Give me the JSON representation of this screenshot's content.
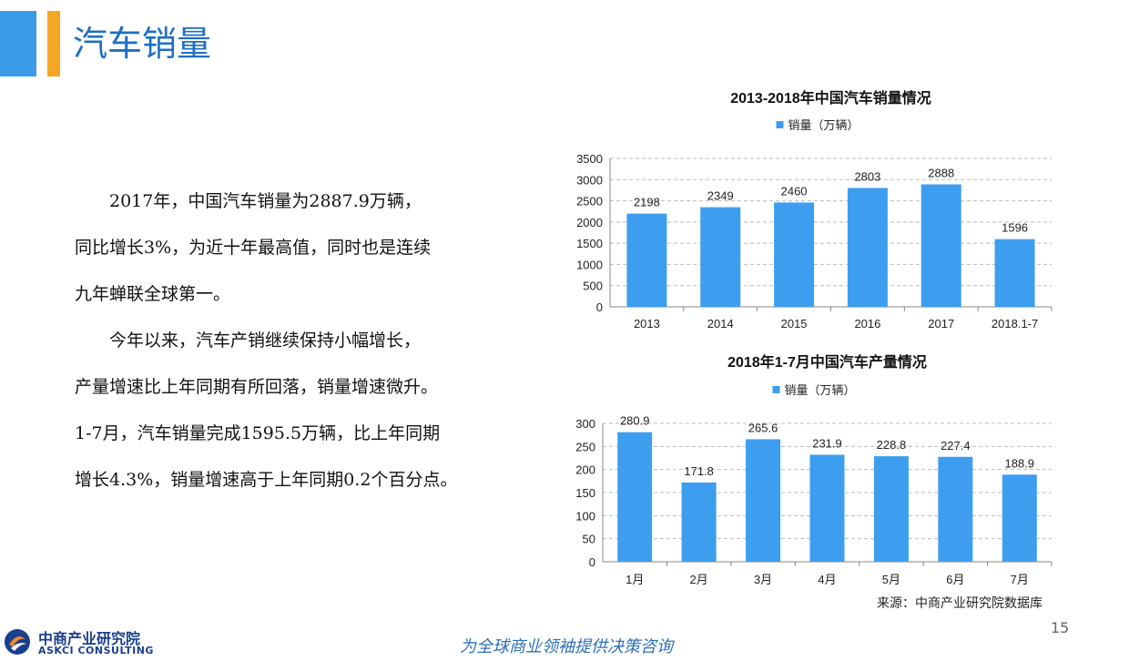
{
  "header": {
    "title": "汽车销量"
  },
  "colors": {
    "accent_blue": "#3a9be8",
    "accent_orange": "#f5a623",
    "bar": "#3d9ef0",
    "title_blue": "#1e6fc4",
    "slogan": "#2c6fb7"
  },
  "body": {
    "paragraphs": [
      "2017年，中国汽车销量为2887.9万辆，",
      "同比增长3%，为近十年最高值，同时也是连续",
      "九年蝉联全球第一。",
      "今年以来，汽车产销继续保持小幅增长，",
      "产量增速比上年同期有所回落，销量增速微升。",
      "1-7月，汽车销量完成1595.5万辆，比上年同期",
      "增长4.3%，销量增速高于上年同期0.2个百分点。"
    ]
  },
  "chart_data": [
    {
      "type": "bar",
      "title": "2013-2018年中国汽车销量情况",
      "legend": "top-center",
      "grid": true,
      "categories": [
        "2013",
        "2014",
        "2015",
        "2016",
        "2017",
        "2018.1-7"
      ],
      "series": [
        {
          "name": "销量（万辆）",
          "values": [
            2198,
            2349,
            2460,
            2803,
            2888,
            1596
          ]
        }
      ],
      "data_labels": [
        "2198",
        "2349",
        "2460",
        "2803",
        "2888",
        "1596"
      ],
      "ylim": [
        0,
        3500
      ],
      "yticks": [
        "0",
        "500",
        "1000",
        "1500",
        "2000",
        "2500",
        "3000",
        "3500"
      ]
    },
    {
      "type": "bar",
      "title": "2018年1-7月中国汽车产量情况",
      "legend": "top-center",
      "grid": true,
      "categories": [
        "1月",
        "2月",
        "3月",
        "4月",
        "5月",
        "6月",
        "7月"
      ],
      "series": [
        {
          "name": "销量（万辆）",
          "values": [
            280.9,
            171.8,
            265.6,
            231.9,
            228.8,
            227.4,
            188.9
          ]
        }
      ],
      "data_labels": [
        "280.9",
        "171.8",
        "265.6",
        "231.9",
        "228.8",
        "227.4",
        "188.9"
      ],
      "ylim": [
        0,
        300
      ],
      "yticks": [
        "0",
        "50",
        "100",
        "150",
        "200",
        "250",
        "300"
      ]
    }
  ],
  "footer": {
    "source": "来源：中商产业研究院数据库",
    "page_number": "15",
    "slogan": "为全球商业领袖提供决策咨询",
    "logo_cn": "中商产业研究院",
    "logo_en": "ASKCI CONSULTING"
  }
}
